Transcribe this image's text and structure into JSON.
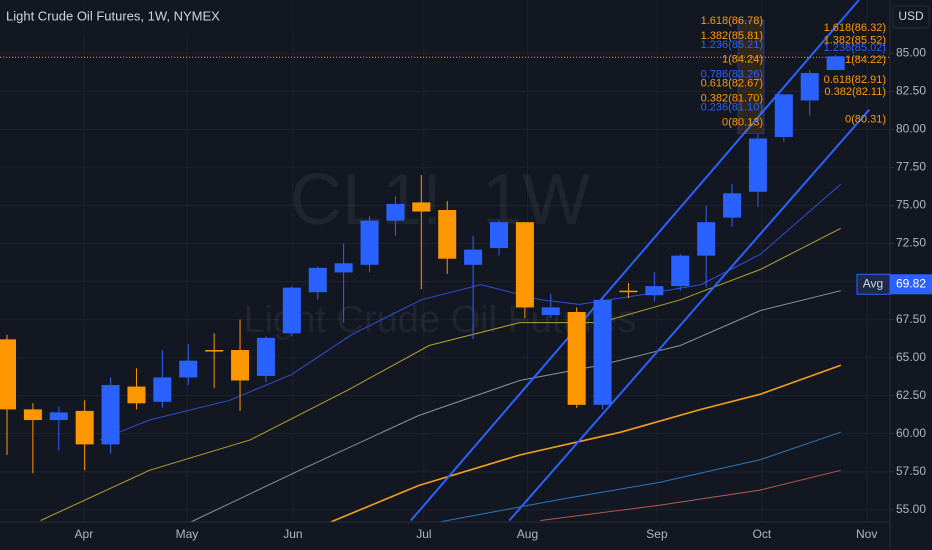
{
  "chart_data": {
    "type": "candlestick",
    "title": "Light Crude Oil Futures, 1W, NYMEX",
    "watermark": "CL1!, 1W",
    "watermark_subtitle": "Light Crude Oil Futures",
    "currency": "USD",
    "categories": [
      null,
      null,
      null,
      null,
      null,
      null,
      null,
      null,
      null,
      null,
      null,
      null,
      null,
      null,
      null,
      null,
      null,
      null,
      null,
      null,
      null,
      null,
      null,
      null,
      null,
      null,
      null,
      null,
      null,
      null,
      null,
      null,
      null
    ],
    "open": [
      66.2,
      61.6,
      60.9,
      61.5,
      59.3,
      63.1,
      62.1,
      63.7,
      65.5,
      65.5,
      63.8,
      66.6,
      69.3,
      70.6,
      71.1,
      74.0,
      75.2,
      74.7,
      71.1,
      72.2,
      73.9,
      67.8,
      68.0,
      61.9,
      69.4,
      69.1,
      69.7,
      71.7,
      74.2,
      75.9,
      79.5,
      81.9,
      83.9
    ],
    "high": [
      66.5,
      62.0,
      61.8,
      62.2,
      63.7,
      64.3,
      65.5,
      65.9,
      66.6,
      67.5,
      66.4,
      69.7,
      71.0,
      72.5,
      74.3,
      75.6,
      77.0,
      75.3,
      73.0,
      74.0,
      73.9,
      69.2,
      68.3,
      68.9,
      69.9,
      70.6,
      71.8,
      75.0,
      76.4,
      79.7,
      82.3,
      83.9,
      84.9
    ],
    "low": [
      58.6,
      57.4,
      58.9,
      57.6,
      58.7,
      61.6,
      61.7,
      63.2,
      63.0,
      61.5,
      63.4,
      66.4,
      68.8,
      67.3,
      70.6,
      73.0,
      69.5,
      70.5,
      66.2,
      71.7,
      67.6,
      67.6,
      61.7,
      61.6,
      68.9,
      68.7,
      69.4,
      69.6,
      73.6,
      74.9,
      79.2,
      80.9,
      83.9
    ],
    "close": [
      61.6,
      60.9,
      61.4,
      59.3,
      63.2,
      62.0,
      63.7,
      64.8,
      65.4,
      63.5,
      66.3,
      69.6,
      70.9,
      71.2,
      74.0,
      75.1,
      74.6,
      71.5,
      72.1,
      73.9,
      68.3,
      68.3,
      61.9,
      68.8,
      69.3,
      69.7,
      71.7,
      73.9,
      75.8,
      79.4,
      82.3,
      83.7,
      84.8
    ],
    "up_color": "#2962ff",
    "down_color": "#ff9800",
    "xlim": [
      -0.27,
      34.1
    ],
    "xticks": [
      {
        "value": 2.97,
        "label": "Apr"
      },
      {
        "value": 6.95,
        "label": "May"
      },
      {
        "value": 11.04,
        "label": "Jun"
      },
      {
        "value": 16.1,
        "label": "Jul"
      },
      {
        "value": 20.1,
        "label": "Aug"
      },
      {
        "value": 25.1,
        "label": "Sep"
      },
      {
        "value": 29.15,
        "label": "Oct"
      },
      {
        "value": 33.2,
        "label": "Nov"
      }
    ],
    "ylim": [
      54.2,
      88.5
    ],
    "yticks": [
      {
        "value": 55,
        "label": "55.00"
      },
      {
        "value": 57.5,
        "label": "57.50"
      },
      {
        "value": 60,
        "label": "60.00"
      },
      {
        "value": 62.5,
        "label": "62.50"
      },
      {
        "value": 65,
        "label": "65.00"
      },
      {
        "value": 67.5,
        "label": "67.50"
      },
      {
        "value": 70,
        "label": "70.00"
      },
      {
        "value": 72.5,
        "label": "72.50"
      },
      {
        "value": 75,
        "label": "75.00"
      },
      {
        "value": 77.5,
        "label": "77.50"
      },
      {
        "value": 80,
        "label": "80.00"
      },
      {
        "value": 82.5,
        "label": "82.50"
      },
      {
        "value": 85,
        "label": "85.00"
      }
    ],
    "grid": true,
    "lines": [
      {
        "color": "#2f4fd8",
        "width": 1,
        "x": [
          3.6,
          5.5,
          8.6,
          11,
          13.3,
          16,
          18.3,
          20.6,
          22.1,
          24.4,
          26.8,
          29.1,
          32.2
        ],
        "values": [
          59.6,
          60.9,
          62.2,
          63.9,
          66.5,
          68.8,
          69.8,
          68.8,
          68.5,
          69.1,
          69.8,
          71.8,
          76.4
        ]
      },
      {
        "color": "#b5a22a",
        "width": 1,
        "x": [
          1.3,
          5.5,
          9.4,
          13.2,
          16.3,
          19.8,
          22.9,
          26,
          29.1,
          32.2
        ],
        "values": [
          54.3,
          57.6,
          59.6,
          62.9,
          65.8,
          67.3,
          67.3,
          68.8,
          70.8,
          73.5
        ]
      },
      {
        "color": "#8a949c",
        "width": 1,
        "x": [
          7.1,
          11.3,
          15.9,
          19.8,
          22.9,
          26,
          29.1,
          32.2
        ],
        "values": [
          54.2,
          57.6,
          61.2,
          63.5,
          64.5,
          65.8,
          68.1,
          69.4
        ]
      },
      {
        "color": "#f2a11b",
        "width": 1.6,
        "x": [
          12.5,
          15.9,
          19.8,
          23.7,
          26.8,
          29.1,
          32.2
        ],
        "values": [
          54.2,
          56.6,
          58.6,
          60.1,
          61.6,
          62.6,
          64.5
        ]
      },
      {
        "color": "#2a78b8",
        "width": 1,
        "x": [
          16.7,
          21.4,
          25.2,
          29.1,
          32.2
        ],
        "values": [
          54.2,
          55.7,
          56.8,
          58.3,
          60.1
        ]
      },
      {
        "color": "#b85a4a",
        "width": 1,
        "x": [
          20.6,
          25.2,
          29.1,
          32.2
        ],
        "values": [
          54.3,
          55.3,
          56.3,
          57.6
        ]
      }
    ],
    "trendlines": [
      {
        "color": "#2962ff",
        "x": [
          15.6,
          32.9
        ],
        "values": [
          54.3,
          88.5
        ]
      },
      {
        "color": "#2962ff",
        "x": [
          19.4,
          33.3
        ],
        "values": [
          54.3,
          81.3
        ]
      }
    ],
    "price_line": 84.74,
    "avg": {
      "label": "Avg",
      "value": 69.82
    },
    "fibs": [
      [
        {
          "value": 86.78,
          "label": "1.618(86.78)",
          "color": "#ff9800"
        },
        {
          "value": 85.81,
          "label": "1.382(85.81)",
          "color": "#ff9800"
        },
        {
          "value": 85.21,
          "label": "1.236(85.21)",
          "color": "#2962ff"
        },
        {
          "value": 84.24,
          "label": "1(84.24)",
          "color": "#ff9800"
        },
        {
          "value": 83.26,
          "label": "0.786(83.26)",
          "color": "#2962ff"
        },
        {
          "value": 82.67,
          "label": "0.618(82.67)",
          "color": "#ff9800"
        },
        {
          "value": 81.7,
          "label": "0.382(81.70)",
          "color": "#ff9800"
        },
        {
          "value": 81.1,
          "label": "0.236(81.10)",
          "color": "#2962ff"
        },
        {
          "value": 80.13,
          "label": "0(80.13)",
          "color": "#ff9800"
        }
      ],
      [
        {
          "value": 86.32,
          "label": "1.618(86.32)",
          "color": "#ff9800"
        },
        {
          "value": 85.52,
          "label": "1.382(85.52)",
          "color": "#ff9800"
        },
        {
          "value": 85.02,
          "label": "1.236(85.02)",
          "color": "#2962ff"
        },
        {
          "value": 84.22,
          "label": "1(84.22)",
          "color": "#ff9800"
        },
        {
          "value": 82.91,
          "label": "0.618(82.91)",
          "color": "#ff9800"
        },
        {
          "value": 82.11,
          "label": "0.382(82.11)",
          "color": "#ff9800"
        },
        {
          "value": 80.31,
          "label": "0(80.31)",
          "color": "#ff9800"
        }
      ]
    ]
  }
}
